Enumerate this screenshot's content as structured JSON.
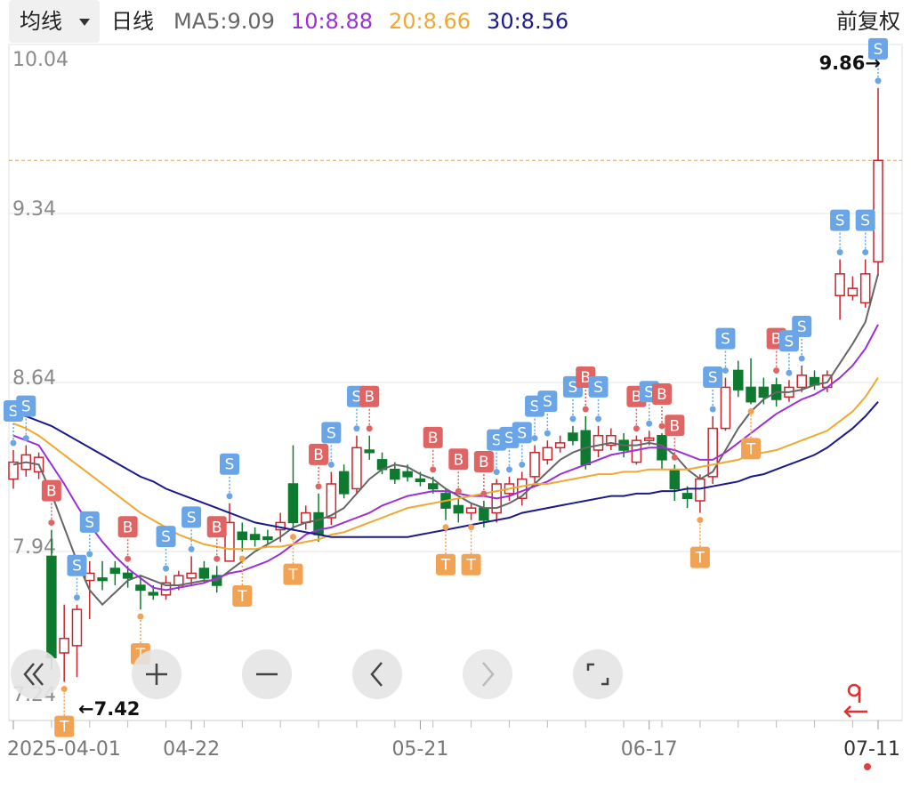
{
  "chart_data": {
    "type": "candlestick",
    "indicator": "均线",
    "period": "日线",
    "adjust": "前复权",
    "categories": [
      "2025-04-01",
      null,
      null,
      null,
      null,
      null,
      null,
      null,
      null,
      null,
      null,
      null,
      null,
      null,
      "04-22",
      null,
      null,
      null,
      null,
      null,
      null,
      null,
      null,
      null,
      null,
      null,
      null,
      null,
      null,
      null,
      null,
      null,
      "05-21",
      null,
      null,
      null,
      null,
      null,
      null,
      null,
      null,
      null,
      null,
      null,
      null,
      null,
      null,
      null,
      null,
      null,
      "06-17",
      null,
      null,
      null,
      null,
      null,
      null,
      null,
      null,
      null,
      null,
      null,
      null,
      null,
      null,
      null,
      null,
      null,
      "07-11"
    ],
    "open": [
      8.24,
      8.28,
      8.27,
      7.92,
      7.52,
      7.55,
      7.82,
      7.83,
      7.87,
      7.85,
      7.8,
      7.77,
      7.76,
      7.8,
      7.83,
      7.87,
      7.84,
      7.9,
      8.02,
      8.01,
      8.0,
      8.03,
      8.22,
      8.06,
      8.1,
      8.08,
      8.27,
      8.2,
      8.36,
      8.32,
      8.28,
      8.27,
      8.24,
      8.22,
      8.18,
      8.13,
      8.1,
      8.12,
      8.1,
      8.18,
      8.16,
      8.25,
      8.32,
      8.37,
      8.43,
      8.44,
      8.36,
      8.38,
      8.4,
      8.31,
      8.4,
      8.42,
      8.28,
      8.18,
      8.15,
      8.25,
      8.45,
      8.69,
      8.62,
      8.62,
      8.63,
      8.58,
      8.62,
      8.66,
      8.62,
      9.0,
      9.0,
      8.97,
      9.14
    ],
    "high": [
      8.36,
      8.38,
      8.35,
      8.03,
      7.72,
      7.72,
      7.9,
      7.9,
      7.9,
      7.88,
      7.84,
      7.8,
      7.84,
      7.86,
      7.92,
      7.9,
      7.88,
      8.14,
      8.06,
      8.04,
      8.03,
      8.1,
      8.38,
      8.13,
      8.18,
      8.27,
      8.3,
      8.42,
      8.42,
      8.35,
      8.31,
      8.3,
      8.27,
      8.25,
      8.2,
      8.16,
      8.14,
      8.15,
      8.24,
      8.25,
      8.27,
      8.38,
      8.4,
      8.42,
      8.46,
      8.5,
      8.46,
      8.45,
      8.43,
      8.42,
      8.44,
      8.43,
      8.3,
      8.21,
      8.26,
      8.5,
      8.66,
      8.73,
      8.74,
      8.66,
      8.66,
      8.65,
      8.71,
      8.69,
      8.69,
      9.15,
      9.08,
      9.15,
      9.86
    ],
    "low": [
      8.2,
      8.25,
      8.24,
      7.45,
      7.4,
      7.42,
      7.66,
      7.78,
      7.8,
      7.79,
      7.7,
      7.74,
      7.74,
      7.78,
      7.8,
      7.81,
      7.77,
      7.92,
      7.94,
      7.96,
      7.97,
      7.98,
      8.03,
      8.03,
      7.98,
      8.05,
      8.16,
      8.18,
      8.32,
      8.26,
      8.22,
      8.23,
      8.21,
      8.18,
      8.07,
      8.06,
      8.07,
      8.04,
      8.06,
      8.15,
      8.13,
      8.22,
      8.3,
      8.35,
      8.38,
      8.28,
      8.33,
      8.36,
      8.33,
      8.3,
      8.38,
      8.28,
      8.15,
      8.12,
      8.1,
      8.22,
      8.44,
      8.58,
      8.55,
      8.55,
      8.54,
      8.56,
      8.6,
      8.61,
      8.6,
      8.9,
      8.98,
      8.95,
      9.08
    ],
    "close": [
      8.31,
      8.34,
      8.33,
      7.5,
      7.58,
      7.7,
      7.85,
      7.82,
      7.85,
      7.83,
      7.78,
      7.76,
      7.81,
      7.84,
      7.85,
      7.83,
      7.8,
      8.06,
      7.99,
      7.99,
      7.99,
      8.06,
      8.06,
      8.1,
      8.01,
      8.22,
      8.18,
      8.37,
      8.35,
      8.28,
      8.24,
      8.25,
      8.23,
      8.2,
      8.12,
      8.1,
      8.12,
      8.07,
      8.22,
      8.22,
      8.24,
      8.35,
      8.37,
      8.39,
      8.4,
      8.3,
      8.42,
      8.42,
      8.36,
      8.4,
      8.41,
      8.32,
      8.2,
      8.16,
      8.24,
      8.45,
      8.62,
      8.61,
      8.56,
      8.58,
      8.57,
      8.62,
      8.67,
      8.63,
      8.67,
      9.09,
      9.03,
      9.09,
      9.56
    ],
    "signals": [
      "S",
      "S",
      null,
      "B",
      "T",
      "S",
      "S",
      null,
      null,
      "B",
      "T",
      null,
      "S",
      null,
      "S",
      null,
      "B",
      "S",
      "T",
      null,
      null,
      null,
      "T",
      null,
      "B",
      "S",
      null,
      "S",
      "B",
      null,
      null,
      null,
      null,
      "B",
      "T",
      "B",
      "T",
      "B",
      "S",
      "S",
      "S",
      "S",
      "S",
      null,
      "S",
      "B",
      "S",
      null,
      null,
      "B",
      "S",
      "B",
      "B",
      null,
      "T",
      "S",
      "S",
      null,
      "T",
      null,
      "B",
      "S",
      "S",
      null,
      null,
      "S",
      null,
      "S",
      "S"
    ],
    "series": [
      {
        "name": "MA5:",
        "color": "#666666",
        "values": [
          8.3,
          8.31,
          8.3,
          8.18,
          8.04,
          7.9,
          7.78,
          7.72,
          7.77,
          7.82,
          7.84,
          7.82,
          7.8,
          7.8,
          7.81,
          7.82,
          7.82,
          7.86,
          7.9,
          7.94,
          7.97,
          8.0,
          8.04,
          8.06,
          8.07,
          8.09,
          8.12,
          8.18,
          8.24,
          8.28,
          8.3,
          8.29,
          8.26,
          8.24,
          8.2,
          8.17,
          8.14,
          8.12,
          8.12,
          8.14,
          8.17,
          8.22,
          8.27,
          8.32,
          8.35,
          8.37,
          8.38,
          8.39,
          8.38,
          8.38,
          8.39,
          8.38,
          8.34,
          8.28,
          8.24,
          8.27,
          8.36,
          8.45,
          8.52,
          8.57,
          8.6,
          8.6,
          8.61,
          8.63,
          8.64,
          8.72,
          8.8,
          8.89,
          9.09
        ]
      },
      {
        "name": "10:",
        "color": "#9b30d9",
        "values": [
          8.42,
          8.4,
          8.38,
          8.3,
          8.22,
          8.13,
          8.05,
          7.98,
          7.92,
          7.87,
          7.83,
          7.79,
          7.78,
          7.79,
          7.8,
          7.81,
          7.83,
          7.85,
          7.86,
          7.88,
          7.9,
          7.93,
          7.97,
          8.01,
          8.03,
          8.04,
          8.06,
          8.08,
          8.1,
          8.13,
          8.15,
          8.17,
          8.18,
          8.19,
          8.19,
          8.18,
          8.17,
          8.17,
          8.16,
          8.17,
          8.19,
          8.21,
          8.23,
          8.26,
          8.28,
          8.3,
          8.32,
          8.34,
          8.35,
          8.36,
          8.37,
          8.37,
          8.36,
          8.34,
          8.32,
          8.32,
          8.35,
          8.39,
          8.43,
          8.47,
          8.51,
          8.54,
          8.57,
          8.59,
          8.62,
          8.66,
          8.71,
          8.78,
          8.88
        ]
      },
      {
        "name": "20:",
        "color": "#f0a830",
        "values": [
          8.47,
          8.45,
          8.42,
          8.38,
          8.34,
          8.3,
          8.26,
          8.22,
          8.18,
          8.14,
          8.1,
          8.07,
          8.04,
          8.01,
          7.99,
          7.97,
          7.96,
          7.95,
          7.95,
          7.95,
          7.96,
          7.96,
          7.97,
          7.98,
          7.99,
          8.01,
          8.02,
          8.04,
          8.06,
          8.08,
          8.1,
          8.12,
          8.13,
          8.14,
          8.15,
          8.16,
          8.17,
          8.18,
          8.19,
          8.2,
          8.21,
          8.22,
          8.22,
          8.23,
          8.24,
          8.25,
          8.26,
          8.26,
          8.27,
          8.27,
          8.28,
          8.28,
          8.28,
          8.28,
          8.29,
          8.3,
          8.31,
          8.32,
          8.34,
          8.35,
          8.36,
          8.38,
          8.4,
          8.42,
          8.44,
          8.48,
          8.52,
          8.58,
          8.66
        ]
      },
      {
        "name": "30:",
        "color": "#1a1a8c",
        "values": [
          8.51,
          8.5,
          8.48,
          8.46,
          8.43,
          8.4,
          8.37,
          8.34,
          8.31,
          8.28,
          8.25,
          8.23,
          8.2,
          8.18,
          8.16,
          8.14,
          8.12,
          8.1,
          8.08,
          8.06,
          8.05,
          8.04,
          8.03,
          8.02,
          8.01,
          8.0,
          8.0,
          8.0,
          8.0,
          8.0,
          8.0,
          8.0,
          8.01,
          8.02,
          8.03,
          8.04,
          8.05,
          8.06,
          8.07,
          8.08,
          8.1,
          8.11,
          8.12,
          8.13,
          8.14,
          8.15,
          8.16,
          8.17,
          8.17,
          8.18,
          8.18,
          8.19,
          8.19,
          8.2,
          8.2,
          8.21,
          8.22,
          8.23,
          8.25,
          8.26,
          8.28,
          8.3,
          8.32,
          8.34,
          8.37,
          8.41,
          8.45,
          8.5,
          8.56
        ]
      }
    ],
    "up_color": "#c8252c",
    "down_color": "#0e7a2f",
    "signal_colors": {
      "S": "#6aa5e8",
      "B": "#e06464",
      "T": "#f2a253"
    },
    "ylim": [
      7.24,
      10.04
    ],
    "yticks": [
      10.04,
      9.34,
      8.64,
      7.94,
      7.24
    ],
    "grid": true
  }
}
